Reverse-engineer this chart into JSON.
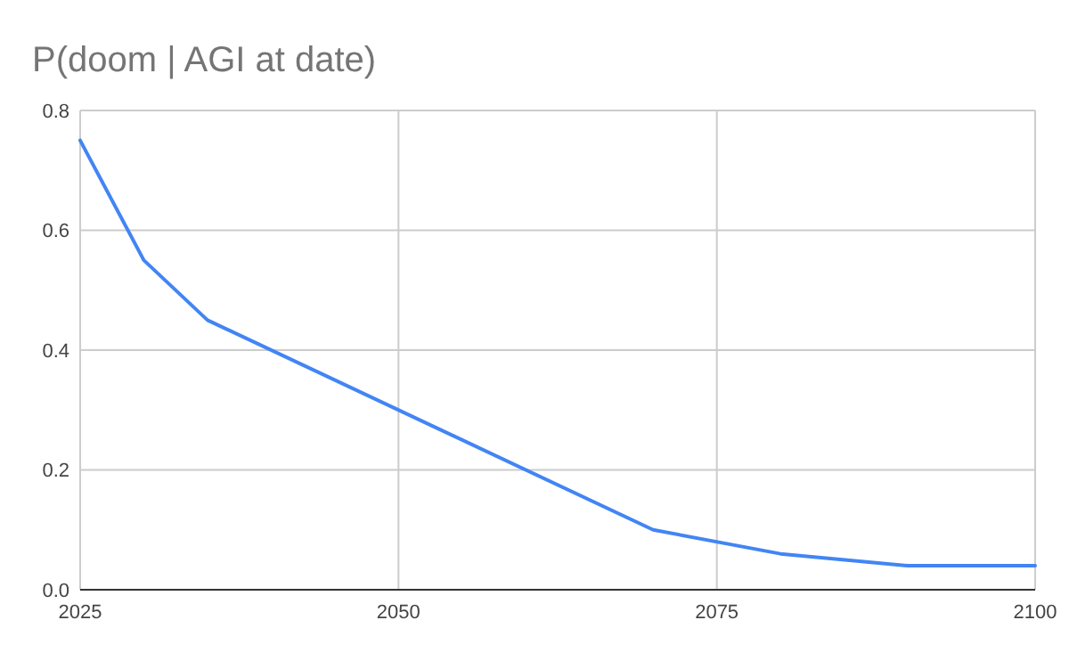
{
  "chart_data": {
    "type": "line",
    "title": "P(doom | AGI at date)",
    "x": [
      2025,
      2030,
      2035,
      2070,
      2080,
      2090,
      2100
    ],
    "series": [
      {
        "color": "#4285f4",
        "values": [
          0.75,
          0.55,
          0.45,
          0.1,
          0.06,
          0.04,
          0.04
        ]
      }
    ],
    "xlim": [
      2025,
      2100
    ],
    "xticks": [
      2025,
      2050,
      2075,
      2100
    ],
    "ylim": [
      0,
      0.8
    ],
    "yticks": [
      {
        "value": 0,
        "label": "0.0"
      },
      {
        "value": 0.2,
        "label": "0.2"
      },
      {
        "value": 0.4,
        "label": "0.4"
      },
      {
        "value": 0.6,
        "label": "0.6"
      },
      {
        "value": 0.8,
        "label": "0.8"
      }
    ],
    "grid": true,
    "marker": "none",
    "line_style": "solid"
  }
}
